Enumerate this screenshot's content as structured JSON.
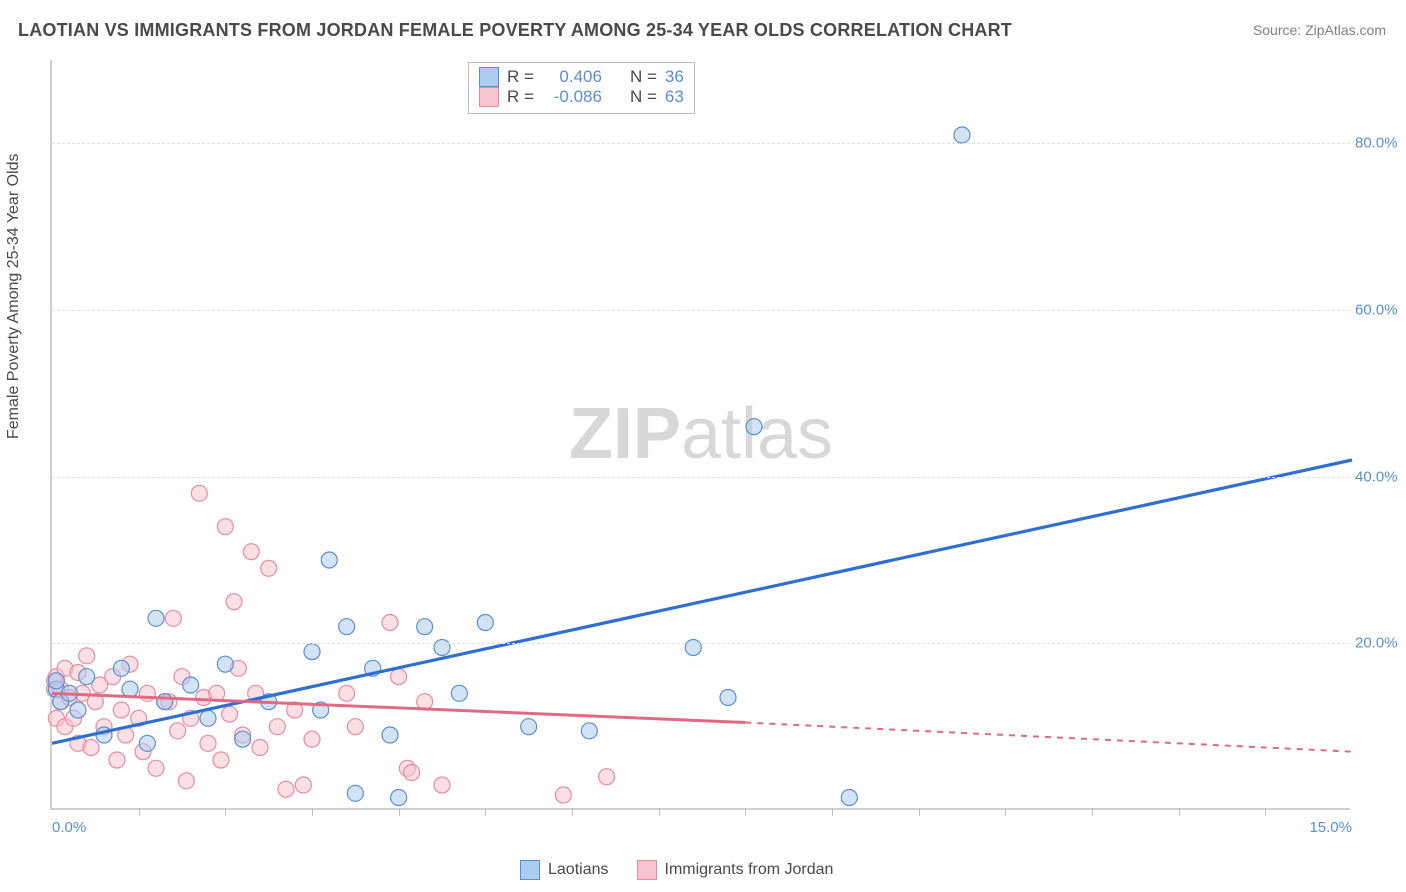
{
  "title": "LAOTIAN VS IMMIGRANTS FROM JORDAN FEMALE POVERTY AMONG 25-34 YEAR OLDS CORRELATION CHART",
  "source": "Source: ZipAtlas.com",
  "watermark_bold": "ZIP",
  "watermark_light": "atlas",
  "y_axis_title": "Female Poverty Among 25-34 Year Olds",
  "chart": {
    "type": "scatter-with-regression",
    "xlim": [
      0,
      15
    ],
    "ylim": [
      0,
      90
    ],
    "x_ticks_label": {
      "0": "0.0%",
      "15": "15.0%"
    },
    "x_minor_ticks": [
      1,
      2,
      3,
      4,
      5,
      6,
      7,
      8,
      9,
      10,
      11,
      12,
      13,
      14
    ],
    "y_ticks": [
      20,
      40,
      60,
      80
    ],
    "y_tick_labels": [
      "20.0%",
      "40.0%",
      "60.0%",
      "80.0%"
    ],
    "background_color": "#ffffff",
    "grid_color": "#e0e0e0",
    "axis_color": "#d0d0d0",
    "tick_label_color": "#5a8fd6",
    "series": [
      {
        "name": "Laotians",
        "color_fill": "#aeccef",
        "color_stroke": "#5a8fd6",
        "line_color": "#2e6fd1",
        "marker_radius": 8,
        "fill_opacity": 0.55,
        "R_label": "R =",
        "R": "0.406",
        "N_label": "N =",
        "N": "36",
        "regression": {
          "x1": 0,
          "y1": 8,
          "x2": 15,
          "y2": 42
        },
        "points": [
          [
            0.05,
            14.5
          ],
          [
            0.05,
            15.5
          ],
          [
            0.1,
            13
          ],
          [
            0.2,
            14
          ],
          [
            0.3,
            12
          ],
          [
            0.4,
            16
          ],
          [
            0.6,
            9
          ],
          [
            0.8,
            17
          ],
          [
            0.9,
            14.5
          ],
          [
            1.1,
            8
          ],
          [
            1.2,
            23
          ],
          [
            1.3,
            13
          ],
          [
            1.6,
            15
          ],
          [
            1.8,
            11
          ],
          [
            2.0,
            17.5
          ],
          [
            2.2,
            8.5
          ],
          [
            2.5,
            13
          ],
          [
            3.0,
            19
          ],
          [
            3.1,
            12
          ],
          [
            3.2,
            30
          ],
          [
            3.4,
            22
          ],
          [
            3.5,
            2
          ],
          [
            3.7,
            17
          ],
          [
            3.9,
            9
          ],
          [
            4.0,
            1.5
          ],
          [
            4.3,
            22
          ],
          [
            4.5,
            19.5
          ],
          [
            4.7,
            14
          ],
          [
            5.0,
            22.5
          ],
          [
            5.5,
            10
          ],
          [
            6.2,
            9.5
          ],
          [
            7.4,
            19.5
          ],
          [
            7.8,
            13.5
          ],
          [
            8.1,
            46
          ],
          [
            9.2,
            1.5
          ],
          [
            10.5,
            81
          ]
        ]
      },
      {
        "name": "Immigrants from Jordan",
        "color_fill": "#f6c4cf",
        "color_stroke": "#e88ba0",
        "line_color": "#e06a84",
        "marker_radius": 8,
        "fill_opacity": 0.55,
        "R_label": "R =",
        "R": "-0.086",
        "N_label": "N =",
        "N": "63",
        "regression_solid": {
          "x1": 0,
          "y1": 14,
          "x2": 8,
          "y2": 10.5
        },
        "regression_dashed": {
          "x1": 8,
          "y1": 10.5,
          "x2": 15,
          "y2": 7
        },
        "points": [
          [
            0.03,
            14.5
          ],
          [
            0.03,
            15.5
          ],
          [
            0.05,
            11
          ],
          [
            0.05,
            16
          ],
          [
            0.1,
            13
          ],
          [
            0.1,
            14.5
          ],
          [
            0.15,
            10
          ],
          [
            0.15,
            17
          ],
          [
            0.2,
            13.5
          ],
          [
            0.25,
            11
          ],
          [
            0.3,
            16.5
          ],
          [
            0.3,
            8
          ],
          [
            0.35,
            14
          ],
          [
            0.4,
            18.5
          ],
          [
            0.45,
            7.5
          ],
          [
            0.5,
            13
          ],
          [
            0.55,
            15
          ],
          [
            0.6,
            10
          ],
          [
            0.7,
            16
          ],
          [
            0.75,
            6
          ],
          [
            0.8,
            12
          ],
          [
            0.85,
            9
          ],
          [
            0.9,
            17.5
          ],
          [
            1.0,
            11
          ],
          [
            1.05,
            7
          ],
          [
            1.1,
            14
          ],
          [
            1.2,
            5
          ],
          [
            1.3,
            13
          ],
          [
            1.35,
            13
          ],
          [
            1.4,
            23
          ],
          [
            1.45,
            9.5
          ],
          [
            1.5,
            16
          ],
          [
            1.55,
            3.5
          ],
          [
            1.6,
            11
          ],
          [
            1.7,
            38
          ],
          [
            1.75,
            13.5
          ],
          [
            1.8,
            8
          ],
          [
            1.9,
            14
          ],
          [
            1.95,
            6
          ],
          [
            2.0,
            34
          ],
          [
            2.05,
            11.5
          ],
          [
            2.1,
            25
          ],
          [
            2.15,
            17
          ],
          [
            2.2,
            9
          ],
          [
            2.3,
            31
          ],
          [
            2.35,
            14
          ],
          [
            2.4,
            7.5
          ],
          [
            2.5,
            29
          ],
          [
            2.6,
            10
          ],
          [
            2.7,
            2.5
          ],
          [
            2.8,
            12
          ],
          [
            2.9,
            3
          ],
          [
            3.0,
            8.5
          ],
          [
            3.4,
            14
          ],
          [
            3.5,
            10
          ],
          [
            3.9,
            22.5
          ],
          [
            4.0,
            16
          ],
          [
            4.1,
            5
          ],
          [
            4.15,
            4.5
          ],
          [
            4.3,
            13
          ],
          [
            4.5,
            3
          ],
          [
            5.9,
            1.8
          ],
          [
            6.4,
            4
          ]
        ]
      }
    ]
  },
  "legend_bottom": {
    "s1_label": "Laotians",
    "s2_label": "Immigrants from Jordan"
  }
}
